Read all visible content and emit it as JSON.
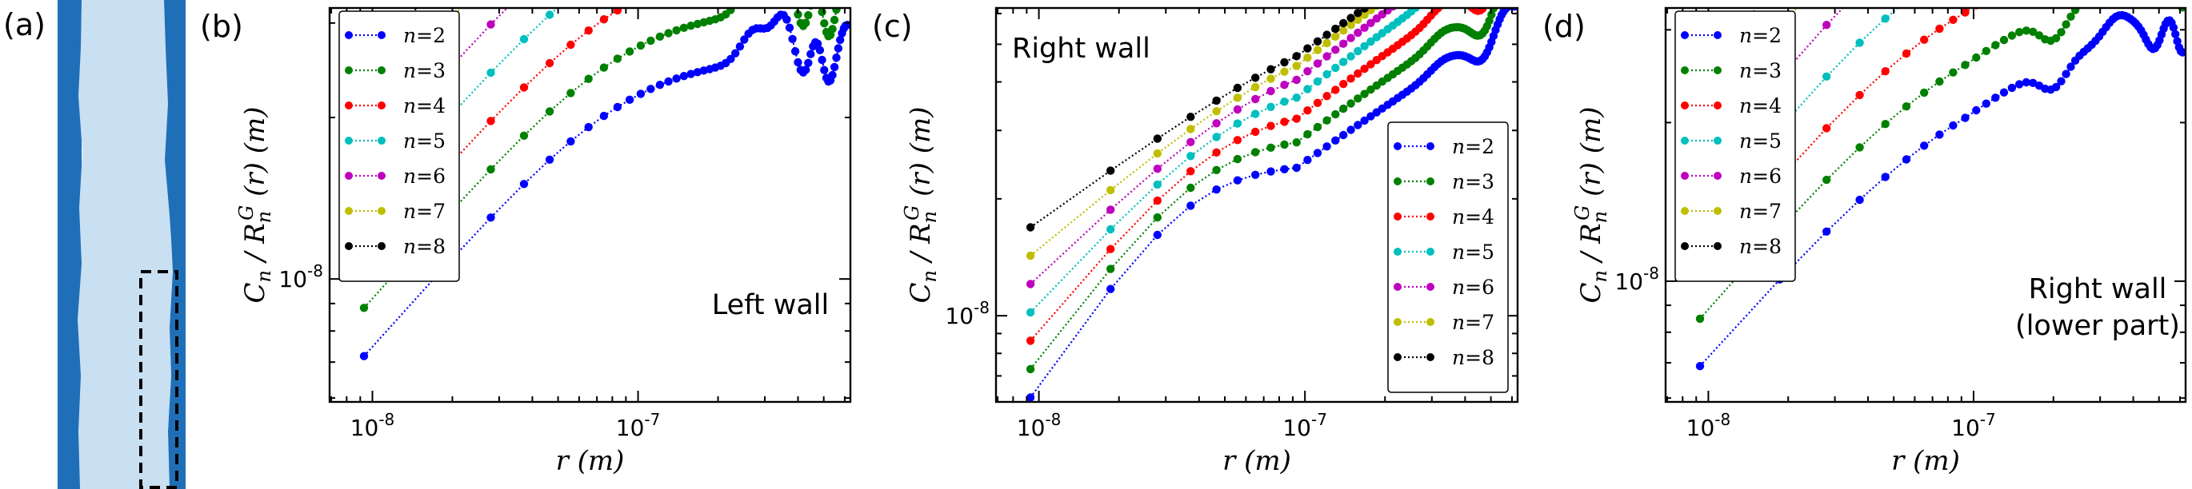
{
  "panel_a": {
    "label": "(a)",
    "colors": {
      "wall": "#1f6fb8",
      "gap": "#c9dff2",
      "box": "#000000"
    }
  },
  "chart_data": [
    {
      "id": "b",
      "type": "line",
      "panel_label": "(b)",
      "annotation": [
        "Left wall"
      ],
      "annotation_pos": "lower-right",
      "legend_pos": "upper-left",
      "xlabel": "r (m)",
      "ylabel": "C_n / R_n^G (r) (m)",
      "xscale": "log",
      "yscale": "log",
      "xlim": [
        6.9e-09,
        6.3e-07
      ],
      "ylim": [
        5.9e-09,
        3.2e-08
      ],
      "xticks": [
        {
          "value": 1e-08,
          "label": "10^-8"
        },
        {
          "value": 1e-07,
          "label": "10^-7"
        }
      ],
      "yticks": [
        {
          "value": 1e-08,
          "label": "10^-8"
        }
      ],
      "series": [
        {
          "name": "n=2",
          "color": "#0000ff"
        },
        {
          "name": "n=3",
          "color": "#008000"
        },
        {
          "name": "n=4",
          "color": "#ff0000"
        },
        {
          "name": "n=5",
          "color": "#00bfbf"
        },
        {
          "name": "n=6",
          "color": "#bf00bf"
        },
        {
          "name": "n=7",
          "color": "#bfbf00"
        },
        {
          "name": "n=8",
          "color": "#000000"
        }
      ],
      "x": [
        9.3e-09,
        1.86e-08,
        2.79e-08,
        3.72e-08,
        4.65e-08,
        5.58e-08,
        6.51e-08,
        7.44e-08,
        8.37e-08,
        9.3e-08,
        1.023e-07,
        1.116e-07,
        1.209e-07,
        1.302e-07,
        1.395e-07,
        1.488e-07,
        1.581e-07,
        1.674e-07,
        1.767e-07,
        1.86e-07,
        1.953e-07,
        2.046e-07,
        2.139e-07,
        2.232e-07,
        2.325e-07,
        2.418e-07,
        2.511e-07,
        2.604e-07,
        2.697e-07,
        2.79e-07,
        2.883e-07,
        2.976e-07,
        3.069e-07,
        3.162e-07,
        3.255e-07,
        3.348e-07,
        3.441e-07,
        3.534e-07,
        3.627e-07,
        3.72e-07,
        3.813e-07,
        3.906e-07,
        3.999e-07,
        4.092e-07,
        4.185e-07,
        4.278e-07,
        4.371e-07,
        4.464e-07,
        4.557e-07,
        4.65e-07,
        4.743e-07,
        4.836e-07,
        4.929e-07,
        5.022e-07,
        5.115e-07,
        5.208e-07,
        5.301e-07,
        5.394e-07,
        5.487e-07,
        5.58e-07,
        5.673e-07,
        5.766e-07,
        5.859e-07,
        5.952e-07,
        6.045e-07,
        6.138e-07
      ],
      "model": {
        "kind": "curve",
        "x0": 9.3e-09,
        "s0": 0.56,
        "ds": 0.0,
        "base0": 7.2e-09,
        "dbase": 0.09,
        "g": 0.12,
        "lsat": 0.56,
        "slope_sat": 0.0,
        "bumps": [
          {
            "x": 2.75e-07,
            "h": 0.06,
            "w": 0.05
          },
          {
            "x": 3.55e-07,
            "h": 0.08,
            "w": 0.04
          },
          {
            "x": 4.15e-07,
            "h": -0.05,
            "w": 0.03
          },
          {
            "x": 4.7e-07,
            "h": 0.05,
            "w": 0.025
          },
          {
            "x": 5.2e-07,
            "h": -0.06,
            "w": 0.025
          },
          {
            "x": 6.1e-07,
            "h": 0.06,
            "w": 0.03
          }
        ]
      }
    },
    {
      "id": "c",
      "type": "line",
      "panel_label": "(c)",
      "annotation": [
        "Right wall"
      ],
      "annotation_pos": "upper-left",
      "legend_pos": "lower-right",
      "xlabel": "r (m)",
      "ylabel": "C_n / R_n^G (r) (m)",
      "xscale": "log",
      "yscale": "log",
      "xlim": [
        6.9e-09,
        6.3e-07
      ],
      "ylim": [
        6e-09,
        6.2e-08
      ],
      "xticks": [
        {
          "value": 1e-08,
          "label": "10^-8"
        },
        {
          "value": 1e-07,
          "label": "10^-7"
        }
      ],
      "yticks": [
        {
          "value": 1e-08,
          "label": "10^-8"
        }
      ],
      "series": [
        {
          "name": "n=2",
          "color": "#0000ff"
        },
        {
          "name": "n=3",
          "color": "#008000"
        },
        {
          "name": "n=4",
          "color": "#ff0000"
        },
        {
          "name": "n=5",
          "color": "#00bfbf"
        },
        {
          "name": "n=6",
          "color": "#bf00bf"
        },
        {
          "name": "n=7",
          "color": "#bfbf00"
        },
        {
          "name": "n=8",
          "color": "#000000"
        }
      ],
      "x": [
        9.3e-09,
        1.86e-08,
        2.79e-08,
        3.72e-08,
        4.65e-08,
        5.58e-08,
        6.51e-08,
        7.44e-08,
        8.37e-08,
        9.3e-08,
        1.023e-07,
        1.116e-07,
        1.209e-07,
        1.302e-07,
        1.395e-07,
        1.488e-07,
        1.581e-07,
        1.674e-07,
        1.767e-07,
        1.86e-07,
        1.953e-07,
        2.046e-07,
        2.139e-07,
        2.232e-07,
        2.325e-07,
        2.418e-07,
        2.511e-07,
        2.604e-07,
        2.697e-07,
        2.79e-07,
        2.883e-07,
        2.976e-07,
        3.069e-07,
        3.162e-07,
        3.255e-07,
        3.348e-07,
        3.441e-07,
        3.534e-07,
        3.627e-07,
        3.72e-07,
        3.813e-07,
        3.906e-07,
        3.999e-07,
        4.092e-07,
        4.185e-07,
        4.278e-07,
        4.371e-07,
        4.464e-07,
        4.557e-07,
        4.65e-07,
        4.743e-07,
        4.836e-07,
        4.929e-07,
        5.022e-07,
        5.115e-07,
        5.208e-07,
        5.301e-07,
        5.394e-07,
        5.487e-07,
        5.58e-07,
        5.673e-07,
        5.766e-07,
        5.859e-07,
        5.952e-07,
        6.045e-07,
        6.138e-07
      ],
      "model": {
        "kind": "curve",
        "x0": 9.3e-09,
        "s0": 0.98,
        "ds": -0.08,
        "base0": 6.2e-09,
        "dbase": 0.073,
        "g": 0.15,
        "lsat": 0.6,
        "slope_sat": 0.45,
        "bumps": [
          {
            "x": 3.3e-07,
            "h": 0.02,
            "w": 0.05
          },
          {
            "x": 4.65e-07,
            "h": -0.05,
            "w": 0.04
          },
          {
            "x": 5.7e-07,
            "h": 0.05,
            "w": 0.04
          }
        ]
      }
    },
    {
      "id": "d",
      "type": "line",
      "panel_label": "(d)",
      "annotation": [
        "Right wall",
        "(lower part)"
      ],
      "annotation_pos": "lower-right",
      "legend_pos": "upper-left",
      "xlabel": "r (m)",
      "ylabel": "C_n / R_n^G (r) (m)",
      "xscale": "log",
      "yscale": "log",
      "xlim": [
        6.9e-09,
        6.3e-07
      ],
      "ylim": [
        5.9e-09,
        3.3e-08
      ],
      "xticks": [
        {
          "value": 1e-08,
          "label": "10^-8"
        },
        {
          "value": 1e-07,
          "label": "10^-7"
        }
      ],
      "yticks": [
        {
          "value": 1e-08,
          "label": "10^-8"
        }
      ],
      "series": [
        {
          "name": "n=2",
          "color": "#0000ff"
        },
        {
          "name": "n=3",
          "color": "#008000"
        },
        {
          "name": "n=4",
          "color": "#ff0000"
        },
        {
          "name": "n=5",
          "color": "#00bfbf"
        },
        {
          "name": "n=6",
          "color": "#bf00bf"
        },
        {
          "name": "n=7",
          "color": "#bfbf00"
        },
        {
          "name": "n=8",
          "color": "#000000"
        }
      ],
      "x": [
        9.3e-09,
        1.86e-08,
        2.79e-08,
        3.72e-08,
        4.65e-08,
        5.58e-08,
        6.51e-08,
        7.44e-08,
        8.37e-08,
        9.3e-08,
        1.023e-07,
        1.116e-07,
        1.209e-07,
        1.302e-07,
        1.395e-07,
        1.488e-07,
        1.581e-07,
        1.674e-07,
        1.767e-07,
        1.86e-07,
        1.953e-07,
        2.046e-07,
        2.139e-07,
        2.232e-07,
        2.325e-07,
        2.418e-07,
        2.511e-07,
        2.604e-07,
        2.697e-07,
        2.79e-07,
        2.883e-07,
        2.976e-07,
        3.069e-07,
        3.162e-07,
        3.255e-07,
        3.348e-07,
        3.441e-07,
        3.534e-07,
        3.627e-07,
        3.72e-07,
        3.813e-07,
        3.906e-07,
        3.999e-07,
        4.092e-07,
        4.185e-07,
        4.278e-07,
        4.371e-07,
        4.464e-07,
        4.557e-07,
        4.65e-07,
        4.743e-07,
        4.836e-07,
        4.929e-07,
        5.022e-07,
        5.115e-07,
        5.208e-07,
        5.301e-07,
        5.394e-07,
        5.487e-07,
        5.58e-07,
        5.673e-07,
        5.766e-07,
        5.859e-07,
        5.952e-07,
        6.045e-07,
        6.138e-07
      ],
      "model": {
        "kind": "curve",
        "x0": 9.3e-09,
        "s0": 0.58,
        "ds": 0.02,
        "base0": 7e-09,
        "dbase": 0.09,
        "g": 0.18,
        "lsat": 0.6,
        "slope_sat": 0.1,
        "bumps": [
          {
            "x": 2e-07,
            "h": -0.045,
            "w": 0.05
          },
          {
            "x": 3.5e-07,
            "h": 0.04,
            "w": 0.05
          },
          {
            "x": 4.8e-07,
            "h": -0.05,
            "w": 0.03
          },
          {
            "x": 5.6e-07,
            "h": 0.02,
            "w": 0.03
          },
          {
            "x": 6.1e-07,
            "h": -0.08,
            "w": 0.025
          }
        ]
      }
    }
  ]
}
